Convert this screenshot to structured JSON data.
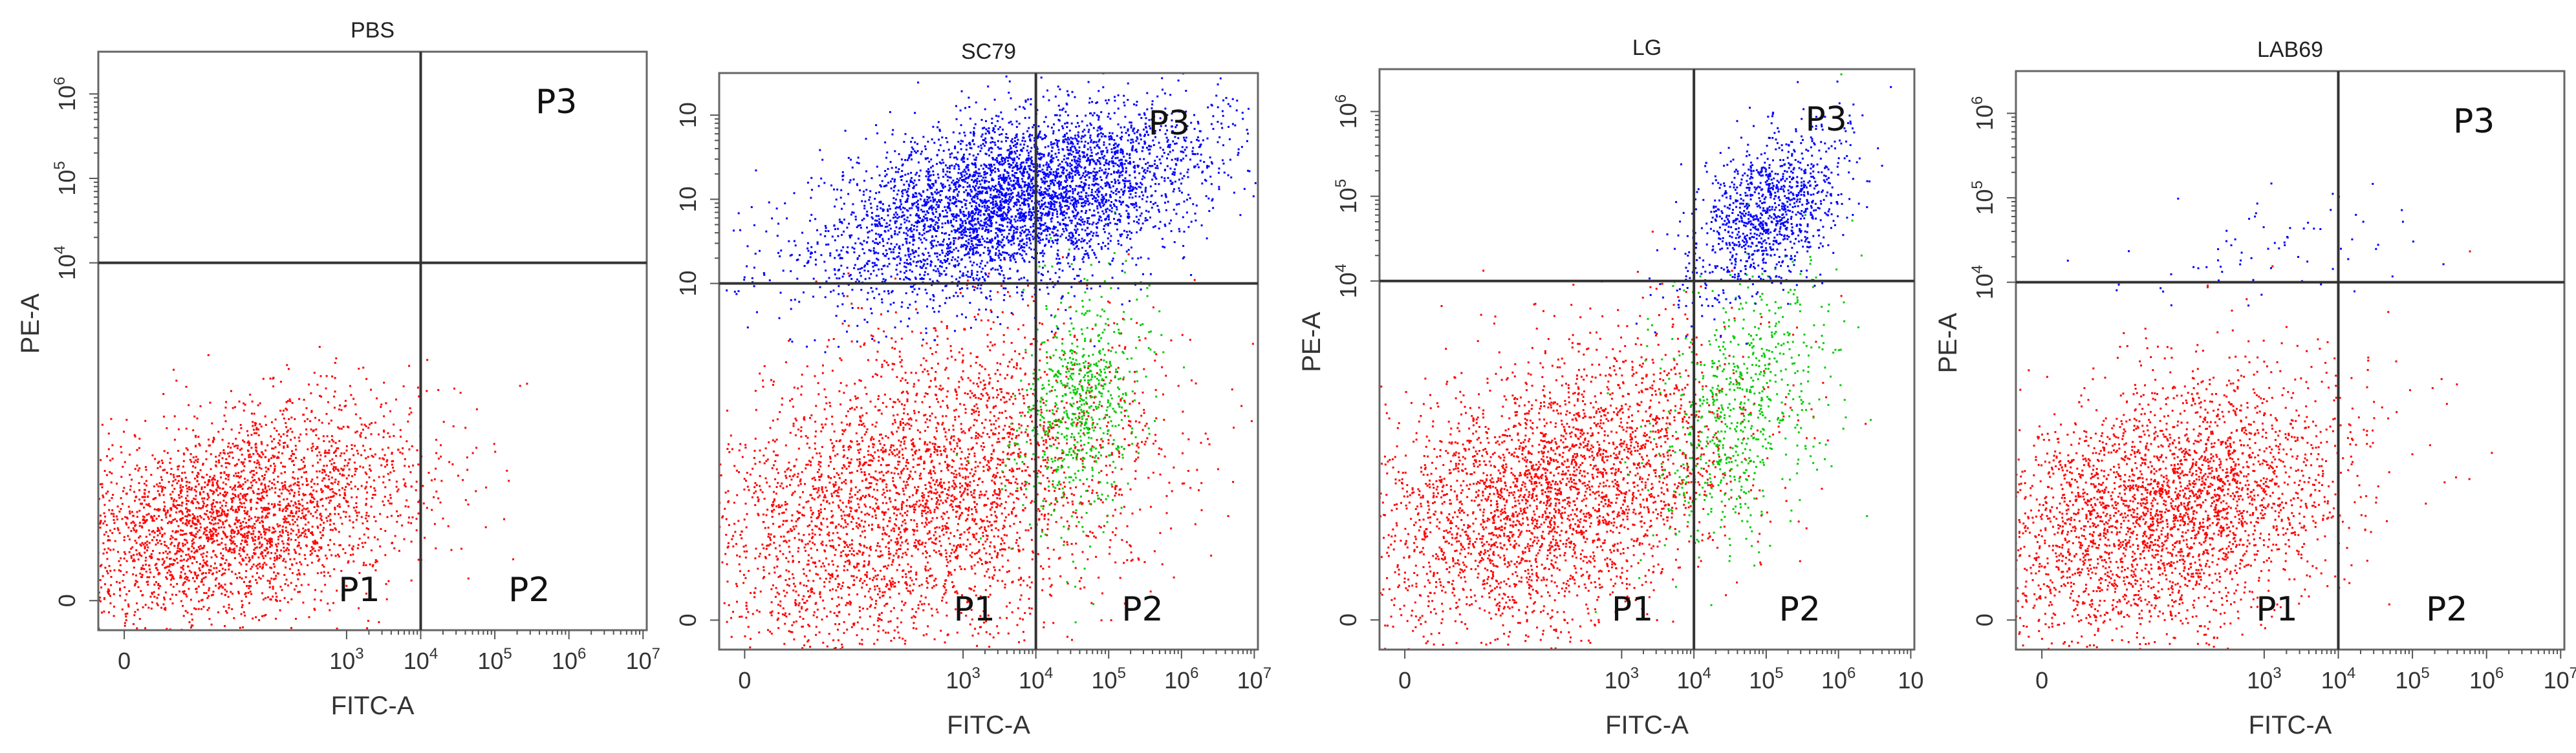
{
  "figure": {
    "type": "flow-cytometry-quadrant-plots",
    "colors": {
      "P1": "#ff0000",
      "P2": "#00cc00",
      "P3": "#0000ff",
      "gate": "#333333",
      "frame": "#666666"
    }
  },
  "chart_data": [
    {
      "type": "scatter",
      "title": "PBS",
      "xlabel": "FITC-A",
      "ylabel": "PE-A",
      "x_ticks": [
        {
          "value": 0,
          "base": "0",
          "exp": ""
        },
        {
          "value": 3,
          "base": "10",
          "exp": "3"
        },
        {
          "value": 4,
          "base": "10",
          "exp": "4"
        },
        {
          "value": 5,
          "base": "10",
          "exp": "5"
        },
        {
          "value": 6,
          "base": "10",
          "exp": "6"
        },
        {
          "value": 7,
          "base": "10",
          "exp": "7"
        }
      ],
      "y_ticks": [
        {
          "value": 0,
          "base": "0",
          "exp": ""
        },
        {
          "value": 4,
          "base": "10",
          "exp": "4"
        },
        {
          "value": 5,
          "base": "10",
          "exp": "5"
        },
        {
          "value": 6,
          "base": "10",
          "exp": "6"
        }
      ],
      "xlim": [
        -0.35,
        7.05
      ],
      "ylim": [
        -0.35,
        6.5
      ],
      "x_gate": 4.0,
      "y_gate": 4.0,
      "quadrant_labels": [
        "P1",
        "P2",
        "P3"
      ],
      "populations": [
        {
          "name": "P1",
          "color": "#ff0000",
          "cx": 1.5,
          "cy": 1.0,
          "sx": 1.25,
          "sy": 0.65,
          "n": 3000,
          "rho": 0.35
        }
      ]
    },
    {
      "type": "scatter",
      "title": "SC79",
      "xlabel": "FITC-A",
      "ylabel": "",
      "x_ticks": [
        {
          "value": 0,
          "base": "0",
          "exp": ""
        },
        {
          "value": 3,
          "base": "10",
          "exp": "3"
        },
        {
          "value": 4,
          "base": "10",
          "exp": "4"
        },
        {
          "value": 5,
          "base": "10",
          "exp": "5"
        },
        {
          "value": 6,
          "base": "10",
          "exp": "6"
        },
        {
          "value": 7,
          "base": "10",
          "exp": "7"
        }
      ],
      "y_ticks": [
        {
          "value": 0,
          "base": "0",
          "exp": ""
        },
        {
          "value": 4,
          "base": "10",
          "exp": ""
        },
        {
          "value": 5,
          "base": "10",
          "exp": ""
        },
        {
          "value": 6,
          "base": "10",
          "exp": ""
        }
      ],
      "xlim": [
        -0.35,
        7.05
      ],
      "ylim": [
        -0.35,
        6.5
      ],
      "x_gate": 4.0,
      "y_gate": 4.0,
      "quadrant_labels": [
        "P1",
        "P2",
        "P3"
      ],
      "populations": [
        {
          "name": "P1",
          "color": "#ff0000",
          "cx": 2.3,
          "cy": 1.4,
          "sx": 1.6,
          "sy": 1.0,
          "n": 3600,
          "rho": 0.35
        },
        {
          "name": "P2",
          "color": "#00cc00",
          "cx": 4.6,
          "cy": 2.6,
          "sx": 0.45,
          "sy": 0.7,
          "n": 700,
          "rho": 0.25
        },
        {
          "name": "P3",
          "color": "#0000ff",
          "cx": 3.7,
          "cy": 5.0,
          "sx": 1.3,
          "sy": 0.55,
          "n": 4400,
          "rho": 0.45
        }
      ]
    },
    {
      "type": "scatter",
      "title": "LG",
      "xlabel": "FITC-A",
      "ylabel": "PE-A",
      "x_ticks": [
        {
          "value": 0,
          "base": "0",
          "exp": ""
        },
        {
          "value": 3,
          "base": "10",
          "exp": "3"
        },
        {
          "value": 4,
          "base": "10",
          "exp": "4"
        },
        {
          "value": 5,
          "base": "10",
          "exp": "5"
        },
        {
          "value": 6,
          "base": "10",
          "exp": "6"
        },
        {
          "value": 7,
          "base": "10",
          "exp": ""
        }
      ],
      "y_ticks": [
        {
          "value": 0,
          "base": "0",
          "exp": ""
        },
        {
          "value": 4,
          "base": "10",
          "exp": "4"
        },
        {
          "value": 5,
          "base": "10",
          "exp": "5"
        },
        {
          "value": 6,
          "base": "10",
          "exp": "6"
        }
      ],
      "xlim": [
        -0.35,
        7.05
      ],
      "ylim": [
        -0.35,
        6.5
      ],
      "x_gate": 4.0,
      "y_gate": 4.0,
      "quadrant_labels": [
        "P1",
        "P2",
        "P3"
      ],
      "populations": [
        {
          "name": "P1",
          "color": "#ff0000",
          "cx": 2.0,
          "cy": 1.5,
          "sx": 1.3,
          "sy": 0.85,
          "n": 3200,
          "rho": 0.35
        },
        {
          "name": "P2",
          "color": "#00cc00",
          "cx": 4.6,
          "cy": 2.5,
          "sx": 0.6,
          "sy": 0.8,
          "n": 700,
          "rho": 0.35
        },
        {
          "name": "P3",
          "color": "#0000ff",
          "cx": 5.0,
          "cy": 4.8,
          "sx": 0.55,
          "sy": 0.5,
          "n": 1100,
          "rho": 0.45
        }
      ]
    },
    {
      "type": "scatter",
      "title": "LAB69",
      "xlabel": "FITC-A",
      "ylabel": "PE-A",
      "x_ticks": [
        {
          "value": 0,
          "base": "0",
          "exp": ""
        },
        {
          "value": 3,
          "base": "10",
          "exp": "3"
        },
        {
          "value": 4,
          "base": "10",
          "exp": "4"
        },
        {
          "value": 5,
          "base": "10",
          "exp": "5"
        },
        {
          "value": 6,
          "base": "10",
          "exp": "6"
        },
        {
          "value": 7,
          "base": "10",
          "exp": "7"
        }
      ],
      "y_ticks": [
        {
          "value": 0,
          "base": "0",
          "exp": ""
        },
        {
          "value": 4,
          "base": "10",
          "exp": "4"
        },
        {
          "value": 5,
          "base": "10",
          "exp": "5"
        },
        {
          "value": 6,
          "base": "10",
          "exp": "6"
        }
      ],
      "xlim": [
        -0.35,
        7.05
      ],
      "ylim": [
        -0.35,
        6.5
      ],
      "x_gate": 4.0,
      "y_gate": 4.0,
      "quadrant_labels": [
        "P1",
        "P2",
        "P3"
      ],
      "populations": [
        {
          "name": "P1",
          "color": "#ff0000",
          "cx": 1.6,
          "cy": 1.3,
          "sx": 1.25,
          "sy": 0.8,
          "n": 3200,
          "rho": 0.35
        },
        {
          "name": "P3",
          "color": "#0000ff",
          "cx": 3.2,
          "cy": 4.4,
          "sx": 1.1,
          "sy": 0.35,
          "n": 70,
          "rho": 0.3
        }
      ]
    }
  ]
}
